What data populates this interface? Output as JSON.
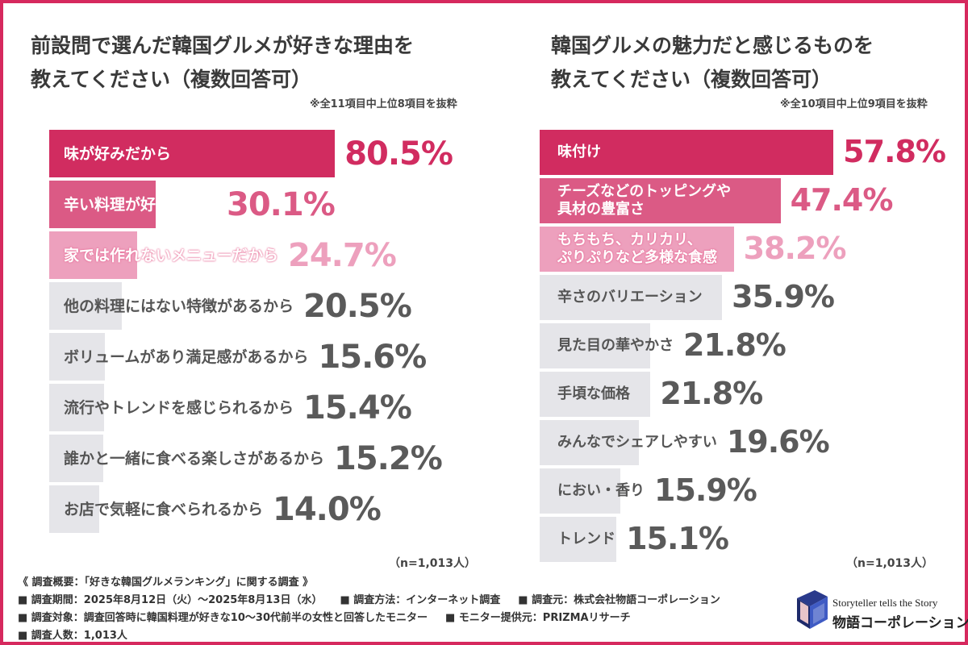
{
  "left": {
    "title_line1": "前設問で選んだ韓国グルメが好きな理由を",
    "title_line2": "教えてください（複数回答可）",
    "note": "※全11項目中上位8項目を抜粋",
    "n": "（n=1,013人）"
  },
  "right": {
    "title_line1": "韓国グルメの魅力だと感じるものを",
    "title_line2": "教えてください（複数回答可）",
    "note": "※全10項目中上位9項目を抜粋",
    "n": "（n=1,013人）"
  },
  "chart_data": [
    {
      "type": "bar",
      "orientation": "horizontal",
      "title": "前設問で選んだ韓国グルメが好きな理由を教えてください（複数回答可）",
      "unit": "%",
      "categories": [
        "味が好みだから",
        "辛い料理が好きだから",
        "家では作れないメニューだから",
        "他の料理にはない特徴があるから",
        "ボリュームがあり満足感があるから",
        "流行やトレンドを感じられるから",
        "誰かと一緒に食べる楽しさがあるから",
        "お店で気軽に食べられるから"
      ],
      "values": [
        80.5,
        30.1,
        24.7,
        20.5,
        15.6,
        15.4,
        15.2,
        14.0
      ],
      "value_labels": [
        "80.5%",
        "30.1%",
        "24.7%",
        "20.5%",
        "15.6%",
        "15.4%",
        "15.2%",
        "14.0%"
      ],
      "colors": [
        "#d12c60",
        "#db5a85",
        "#eda0bd",
        "#e5e5e9",
        "#e5e5e9",
        "#e5e5e9",
        "#e5e5e9",
        "#e5e5e9"
      ]
    },
    {
      "type": "bar",
      "orientation": "horizontal",
      "title": "韓国グルメの魅力だと感じるものを教えてください（複数回答可）",
      "unit": "%",
      "categories": [
        "味付け",
        "チーズなどのトッピングや\n具材の豊富さ",
        "もちもち、カリカリ、\nぷりぷりなど多様な食感",
        "辛さのバリエーション",
        "見た目の華やかさ",
        "手頃な価格",
        "みんなでシェアしやすい",
        "におい・香り",
        "トレンド"
      ],
      "values": [
        57.8,
        47.4,
        38.2,
        35.9,
        21.8,
        21.8,
        19.6,
        15.9,
        15.1
      ],
      "value_labels": [
        "57.8%",
        "47.4%",
        "38.2%",
        "35.9%",
        "21.8%",
        "21.8%",
        "19.6%",
        "15.9%",
        "15.1%"
      ],
      "colors": [
        "#d12c60",
        "#db5a85",
        "#eda0bd",
        "#e5e5e9",
        "#e5e5e9",
        "#e5e5e9",
        "#e5e5e9",
        "#e5e5e9",
        "#e5e5e9"
      ]
    }
  ],
  "footer": {
    "line1": "《 調査概要：「好きな韓国グルメランキング」に関する調査 》",
    "period": "■ 調査期間：2025年8月12日（火）〜2025年8月13日（水）",
    "method": "■ 調査方法：インターネット調査",
    "org": "■ 調査元：株式会社物語コーポレーション",
    "target": "■ 調査対象：調査回答時に韓国料理が好きな10〜30代前半の女性と回答したモニター",
    "provider": "■ モニター提供元：PRIZMAリサーチ",
    "count": "■ 調査人数：1,013人"
  },
  "logo": {
    "tagline": "Storyteller tells the Story",
    "name": "物語コーポレーション",
    "icon": "book-logo-icon"
  }
}
